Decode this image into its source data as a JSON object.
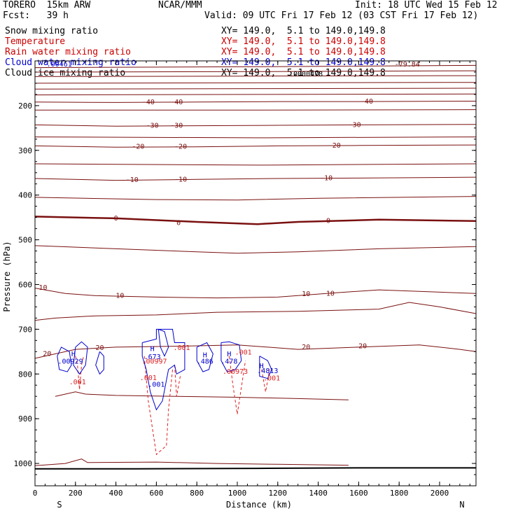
{
  "header": {
    "model": "TORERO  15km ARW",
    "org": "NCAR/MMM",
    "init": "Init: 18 UTC Wed 15 Feb 12",
    "fcst": "Fcst:   39 h",
    "valid": "Valid: 09 UTC Fri 17 Feb 12 (03 CST Fri 17 Feb 12)"
  },
  "fields": [
    {
      "name": "Snow mixing ratio",
      "xy": "XY= 149.0,  5.1 to 149.0,149.8",
      "color": "#000000"
    },
    {
      "name": "Temperature",
      "xy": "XY= 149.0,  5.1 to 149.0,149.8",
      "color": "#cc0000"
    },
    {
      "name": "Rain water mixing ratio",
      "xy": "XY= 149.0,  5.1 to 149.0,149.8",
      "color": "#cc0000"
    },
    {
      "name": "Cloud water mixing ratio",
      "xy": "XY= 149.0,  5.1 to 149.0,149.8",
      "color": "#0000cc"
    },
    {
      "name": "Cloud ice mixing ratio",
      "xy": "XY= 149.0,  5.1 to 149.0,149.8",
      "color": "#000000"
    }
  ],
  "snow_min_label": ".0000478",
  "chart_data": {
    "type": "line",
    "xlabel": "Distance (km)",
    "ylabel": "Pressure (hPa)",
    "xlim": [
      0,
      2180
    ],
    "ylim": [
      1050,
      100
    ],
    "x_ticks": [
      0,
      200,
      400,
      600,
      800,
      1000,
      1200,
      1400,
      1600,
      1800,
      2000
    ],
    "y_ticks": [
      200,
      300,
      400,
      500,
      600,
      700,
      800,
      900,
      1000
    ],
    "left_end_label": "S",
    "right_end_label": "N",
    "colors": {
      "temperature": "#7a1010",
      "rain": "#dd2222",
      "cloud": "#0000cc",
      "ice": "#000000"
    },
    "temperature_contours": [
      {
        "level": -70,
        "points": [
          [
            0,
            115
          ],
          [
            1100,
            113
          ],
          [
            2180,
            110
          ]
        ]
      },
      {
        "level": -65,
        "points": [
          [
            0,
            125
          ],
          [
            1100,
            124
          ],
          [
            2180,
            122
          ]
        ]
      },
      {
        "level": -60,
        "points": [
          [
            0,
            135
          ],
          [
            1100,
            134
          ],
          [
            2180,
            133
          ]
        ]
      },
      {
        "level": -55,
        "points": [
          [
            0,
            150
          ],
          [
            1100,
            149
          ],
          [
            2180,
            148
          ]
        ]
      },
      {
        "level": -50,
        "points": [
          [
            0,
            163
          ],
          [
            1100,
            162
          ],
          [
            2180,
            161
          ]
        ]
      },
      {
        "level": -45,
        "points": [
          [
            0,
            176
          ],
          [
            1100,
            175
          ],
          [
            2180,
            174
          ]
        ]
      },
      {
        "level": -40,
        "points": [
          [
            0,
            192
          ],
          [
            400,
            193
          ],
          [
            800,
            192
          ],
          [
            1200,
            191
          ],
          [
            1600,
            191
          ],
          [
            2180,
            190
          ]
        ]
      },
      {
        "level": -35,
        "points": [
          [
            0,
            210
          ],
          [
            1100,
            210
          ],
          [
            2180,
            209
          ]
        ]
      },
      {
        "level": -30,
        "points": [
          [
            0,
            243
          ],
          [
            400,
            246
          ],
          [
            800,
            245
          ],
          [
            1200,
            244
          ],
          [
            1600,
            243
          ],
          [
            2180,
            242
          ]
        ]
      },
      {
        "level": -25,
        "points": [
          [
            0,
            270
          ],
          [
            1100,
            272
          ],
          [
            2180,
            270
          ]
        ]
      },
      {
        "level": -20,
        "points": [
          [
            0,
            290
          ],
          [
            400,
            293
          ],
          [
            800,
            292
          ],
          [
            1200,
            290
          ],
          [
            1600,
            289
          ],
          [
            2180,
            288
          ]
        ]
      },
      {
        "level": -15,
        "points": [
          [
            0,
            330
          ],
          [
            1100,
            333
          ],
          [
            2180,
            330
          ]
        ]
      },
      {
        "level": -10,
        "points": [
          [
            0,
            363
          ],
          [
            400,
            367
          ],
          [
            800,
            365
          ],
          [
            1200,
            363
          ],
          [
            1600,
            362
          ],
          [
            2180,
            360
          ]
        ]
      },
      {
        "level": -5,
        "points": [
          [
            0,
            405
          ],
          [
            600,
            410
          ],
          [
            1000,
            411
          ],
          [
            1400,
            407
          ],
          [
            2180,
            403
          ]
        ]
      },
      {
        "level": 0,
        "points": [
          [
            0,
            448
          ],
          [
            400,
            452
          ],
          [
            800,
            460
          ],
          [
            1100,
            465
          ],
          [
            1300,
            460
          ],
          [
            1700,
            455
          ],
          [
            2180,
            458
          ]
        ]
      },
      {
        "level": 5,
        "points": [
          [
            0,
            513
          ],
          [
            400,
            520
          ],
          [
            800,
            527
          ],
          [
            1000,
            530
          ],
          [
            1300,
            527
          ],
          [
            1700,
            520
          ],
          [
            2180,
            515
          ]
        ]
      },
      {
        "level": 10,
        "points": [
          [
            0,
            608
          ],
          [
            150,
            620
          ],
          [
            300,
            625
          ],
          [
            600,
            628
          ],
          [
            900,
            630
          ],
          [
            1200,
            628
          ],
          [
            1500,
            618
          ],
          [
            1700,
            612
          ],
          [
            2180,
            620
          ]
        ]
      },
      {
        "level": 15,
        "points": [
          [
            0,
            680
          ],
          [
            100,
            675
          ],
          [
            300,
            670
          ],
          [
            600,
            668
          ],
          [
            900,
            662
          ],
          [
            1300,
            660
          ],
          [
            1700,
            655
          ],
          [
            1850,
            640
          ],
          [
            2000,
            650
          ],
          [
            2180,
            665
          ]
        ]
      },
      {
        "level": 20,
        "points": [
          [
            0,
            765
          ],
          [
            200,
            745
          ],
          [
            400,
            740
          ],
          [
            700,
            738
          ],
          [
            1000,
            735
          ],
          [
            1300,
            745
          ],
          [
            1600,
            740
          ],
          [
            1900,
            735
          ],
          [
            2100,
            745
          ],
          [
            2180,
            750
          ]
        ]
      },
      {
        "level": 25,
        "points": [
          [
            100,
            850
          ],
          [
            200,
            840
          ],
          [
            250,
            845
          ],
          [
            400,
            848
          ],
          [
            700,
            850
          ],
          [
            1000,
            852
          ],
          [
            1300,
            855
          ],
          [
            1550,
            858
          ]
        ]
      }
    ],
    "temperature_labels": [
      {
        "text": "-79.84",
        "x": 1840,
        "y": 108
      },
      {
        "text": "-40",
        "x": 560,
        "y": 192
      },
      {
        "text": "-40",
        "x": 700,
        "y": 192
      },
      {
        "text": "-40",
        "x": 1640,
        "y": 191
      },
      {
        "text": "-30",
        "x": 580,
        "y": 245
      },
      {
        "text": "-30",
        "x": 700,
        "y": 245
      },
      {
        "text": "-30",
        "x": 1580,
        "y": 243
      },
      {
        "text": "-20",
        "x": 510,
        "y": 292
      },
      {
        "text": "-20",
        "x": 720,
        "y": 292
      },
      {
        "text": "-20",
        "x": 1480,
        "y": 289
      },
      {
        "text": "-10",
        "x": 480,
        "y": 366
      },
      {
        "text": "-10",
        "x": 720,
        "y": 365
      },
      {
        "text": "-10",
        "x": 1440,
        "y": 362
      },
      {
        "text": "0",
        "x": 400,
        "y": 452
      },
      {
        "text": "0",
        "x": 710,
        "y": 462
      },
      {
        "text": "0",
        "x": 1450,
        "y": 458
      },
      {
        "text": "10",
        "x": 40,
        "y": 607
      },
      {
        "text": "10",
        "x": 420,
        "y": 625
      },
      {
        "text": "10",
        "x": 1340,
        "y": 621
      },
      {
        "text": "10",
        "x": 1460,
        "y": 620
      },
      {
        "text": "20",
        "x": 60,
        "y": 755
      },
      {
        "text": "20",
        "x": 320,
        "y": 742
      },
      {
        "text": "20",
        "x": 1340,
        "y": 740
      },
      {
        "text": "20",
        "x": 1620,
        "y": 738
      }
    ],
    "rain_contours": [
      {
        "points": [
          [
            200,
            760
          ],
          [
            210,
            780
          ],
          [
            220,
            835
          ],
          [
            230,
            780
          ],
          [
            240,
            760
          ]
        ]
      },
      {
        "points": [
          [
            540,
            760
          ],
          [
            560,
            860
          ],
          [
            600,
            980
          ],
          [
            650,
            960
          ],
          [
            660,
            880
          ],
          [
            680,
            790
          ]
        ]
      },
      {
        "points": [
          [
            690,
            780
          ],
          [
            700,
            850
          ],
          [
            720,
            800
          ]
        ]
      },
      {
        "points": [
          [
            960,
            760
          ],
          [
            980,
            830
          ],
          [
            1000,
            890
          ],
          [
            1020,
            830
          ],
          [
            1040,
            770
          ]
        ]
      },
      {
        "points": [
          [
            1120,
            790
          ],
          [
            1140,
            840
          ],
          [
            1160,
            790
          ]
        ]
      }
    ],
    "rain_labels": [
      {
        "text": ".001",
        "x": 210,
        "y": 818
      },
      {
        "text": ".00997",
        "x": 590,
        "y": 772
      },
      {
        "text": ".001",
        "x": 560,
        "y": 809
      },
      {
        "text": ".001",
        "x": 725,
        "y": 742
      },
      {
        "text": ".00973",
        "x": 990,
        "y": 795
      },
      {
        "text": ".001",
        "x": 1030,
        "y": 752
      },
      {
        "text": ".001",
        "x": 1170,
        "y": 810
      }
    ],
    "cloud_contours": [
      {
        "points": [
          [
            110,
            760
          ],
          [
            130,
            740
          ],
          [
            170,
            750
          ],
          [
            180,
            780
          ],
          [
            160,
            795
          ],
          [
            120,
            790
          ],
          [
            110,
            760
          ]
        ]
      },
      {
        "points": [
          [
            200,
            740
          ],
          [
            230,
            728
          ],
          [
            260,
            740
          ],
          [
            250,
            780
          ],
          [
            220,
            800
          ],
          [
            190,
            780
          ],
          [
            200,
            740
          ]
        ]
      },
      {
        "points": [
          [
            320,
            750
          ],
          [
            340,
            760
          ],
          [
            340,
            790
          ],
          [
            320,
            800
          ],
          [
            300,
            780
          ],
          [
            320,
            750
          ]
        ]
      },
      {
        "points": [
          [
            530,
            730
          ],
          [
            600,
            722
          ],
          [
            600,
            700
          ],
          [
            680,
            700
          ],
          [
            690,
            730
          ],
          [
            740,
            730
          ],
          [
            740,
            790
          ],
          [
            700,
            800
          ],
          [
            690,
            780
          ],
          [
            660,
            790
          ],
          [
            630,
            860
          ],
          [
            600,
            880
          ],
          [
            570,
            840
          ],
          [
            550,
            790
          ],
          [
            530,
            760
          ],
          [
            530,
            730
          ]
        ]
      },
      {
        "points": [
          [
            610,
            700
          ],
          [
            640,
            705
          ],
          [
            660,
            740
          ],
          [
            640,
            760
          ],
          [
            620,
            740
          ],
          [
            610,
            700
          ]
        ]
      },
      {
        "points": [
          [
            800,
            740
          ],
          [
            850,
            730
          ],
          [
            880,
            755
          ],
          [
            860,
            790
          ],
          [
            830,
            795
          ],
          [
            800,
            770
          ],
          [
            800,
            740
          ]
        ]
      },
      {
        "points": [
          [
            920,
            730
          ],
          [
            960,
            728
          ],
          [
            1010,
            735
          ],
          [
            1020,
            770
          ],
          [
            990,
            790
          ],
          [
            950,
            795
          ],
          [
            920,
            770
          ],
          [
            920,
            730
          ]
        ]
      },
      {
        "points": [
          [
            1110,
            760
          ],
          [
            1150,
            770
          ],
          [
            1170,
            790
          ],
          [
            1150,
            810
          ],
          [
            1110,
            805
          ],
          [
            1110,
            760
          ]
        ]
      }
    ],
    "cloud_labels": [
      {
        "text": "H",
        "x": 190,
        "y": 756
      },
      {
        "text": ".00929",
        "x": 175,
        "y": 772
      },
      {
        "text": "H",
        "x": 580,
        "y": 744
      },
      {
        "text": ".673",
        "x": 580,
        "y": 762
      },
      {
        "text": "H",
        "x": 840,
        "y": 758
      },
      {
        "text": ".486",
        "x": 840,
        "y": 772
      },
      {
        "text": "H",
        "x": 960,
        "y": 756
      },
      {
        "text": ".478",
        "x": 960,
        "y": 772
      },
      {
        "text": "H",
        "x": 1120,
        "y": 782
      },
      {
        "text": ".4813",
        "x": 1150,
        "y": 793
      },
      {
        "text": ".001",
        "x": 600,
        "y": 824
      },
      {
        "text": ".00461",
        "x": 120,
        "y": 108
      }
    ],
    "ground_line": {
      "points": [
        [
          0,
          1012
        ],
        [
          500,
          1012
        ],
        [
          1100,
          1011
        ],
        [
          1600,
          1010
        ],
        [
          2180,
          1010
        ]
      ]
    },
    "surface_line": {
      "points": [
        [
          0,
          1005
        ],
        [
          150,
          1000
        ],
        [
          230,
          990
        ],
        [
          260,
          998
        ],
        [
          600,
          997
        ],
        [
          900,
          1000
        ],
        [
          1200,
          1002
        ],
        [
          1550,
          1004
        ]
      ]
    }
  }
}
